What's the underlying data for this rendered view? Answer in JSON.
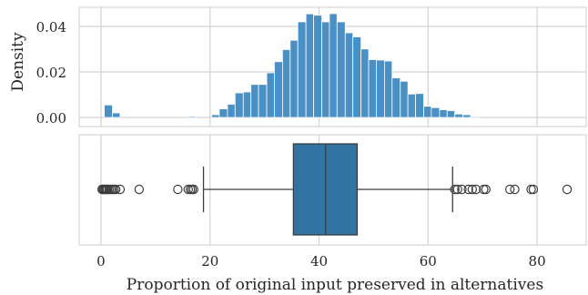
{
  "chart_data": [
    {
      "type": "histogram",
      "ylabel": "Density",
      "xlim": [
        -4,
        89
      ],
      "ylim": [
        0,
        0.048
      ],
      "yticks": [
        0.0,
        0.02,
        0.04
      ],
      "ytick_labels": [
        "0.00",
        "0.02",
        "0.04"
      ],
      "xticks": [
        0,
        20,
        40,
        60,
        80
      ],
      "grid": true,
      "bar_color": "#4a90c4",
      "bins": [
        {
          "x0": 0.6,
          "x1": 2.1,
          "density": 0.0055
        },
        {
          "x0": 2.1,
          "x1": 3.5,
          "density": 0.002
        },
        {
          "x0": 16.0,
          "x1": 17.4,
          "density": 0.0005
        },
        {
          "x0": 20.3,
          "x1": 21.7,
          "density": 0.0012
        },
        {
          "x0": 21.7,
          "x1": 23.2,
          "density": 0.0038
        },
        {
          "x0": 23.2,
          "x1": 24.6,
          "density": 0.0058
        },
        {
          "x0": 24.6,
          "x1": 26.1,
          "density": 0.0108
        },
        {
          "x0": 26.1,
          "x1": 27.5,
          "density": 0.0112
        },
        {
          "x0": 27.5,
          "x1": 28.9,
          "density": 0.0145
        },
        {
          "x0": 28.9,
          "x1": 30.4,
          "density": 0.0145
        },
        {
          "x0": 30.4,
          "x1": 31.8,
          "density": 0.0196
        },
        {
          "x0": 31.8,
          "x1": 33.3,
          "density": 0.0245
        },
        {
          "x0": 33.3,
          "x1": 34.7,
          "density": 0.0298
        },
        {
          "x0": 34.7,
          "x1": 36.1,
          "density": 0.0339
        },
        {
          "x0": 36.1,
          "x1": 37.6,
          "density": 0.042
        },
        {
          "x0": 37.6,
          "x1": 39.0,
          "density": 0.0455
        },
        {
          "x0": 39.0,
          "x1": 40.5,
          "density": 0.0449
        },
        {
          "x0": 40.5,
          "x1": 41.9,
          "density": 0.042
        },
        {
          "x0": 41.9,
          "x1": 43.3,
          "density": 0.0456
        },
        {
          "x0": 43.3,
          "x1": 44.8,
          "density": 0.042
        },
        {
          "x0": 44.8,
          "x1": 46.2,
          "density": 0.0372
        },
        {
          "x0": 46.2,
          "x1": 47.7,
          "density": 0.0354
        },
        {
          "x0": 47.7,
          "x1": 49.1,
          "density": 0.0301
        },
        {
          "x0": 49.1,
          "x1": 50.5,
          "density": 0.0254
        },
        {
          "x0": 50.5,
          "x1": 52.0,
          "density": 0.0252
        },
        {
          "x0": 52.0,
          "x1": 53.4,
          "density": 0.0248
        },
        {
          "x0": 53.4,
          "x1": 54.9,
          "density": 0.0174
        },
        {
          "x0": 54.9,
          "x1": 56.3,
          "density": 0.0159
        },
        {
          "x0": 56.3,
          "x1": 57.7,
          "density": 0.0103
        },
        {
          "x0": 57.7,
          "x1": 59.2,
          "density": 0.0105
        },
        {
          "x0": 59.2,
          "x1": 60.6,
          "density": 0.0049
        },
        {
          "x0": 60.6,
          "x1": 62.1,
          "density": 0.0043
        },
        {
          "x0": 62.1,
          "x1": 63.5,
          "density": 0.0034
        },
        {
          "x0": 63.5,
          "x1": 64.9,
          "density": 0.003
        },
        {
          "x0": 64.9,
          "x1": 66.4,
          "density": 0.0015
        },
        {
          "x0": 66.4,
          "x1": 67.8,
          "density": 0.0012
        },
        {
          "x0": 67.8,
          "x1": 69.3,
          "density": 0.0004
        }
      ]
    },
    {
      "type": "boxplot",
      "xlabel": "Proportion of original input preserved in alternatives",
      "xlim": [
        -4,
        89
      ],
      "xticks": [
        0,
        20,
        40,
        60,
        80
      ],
      "xtick_labels": [
        "0",
        "20",
        "40",
        "60",
        "80"
      ],
      "grid": true,
      "box_color": "#3274a1",
      "q1": 35.3,
      "median": 41.2,
      "q3": 47.0,
      "whisker_low": 18.8,
      "whisker_high": 64.5,
      "outliers": [
        0.2,
        0.4,
        0.6,
        0.8,
        1.0,
        1.2,
        1.5,
        1.8,
        2.1,
        2.4,
        2.7,
        3.5,
        7.0,
        14.1,
        16.0,
        16.4,
        16.7,
        17.0,
        64.9,
        65.4,
        66.2,
        67.4,
        68.1,
        68.8,
        70.2,
        70.6,
        75.0,
        75.9,
        78.9,
        79.3,
        85.5
      ]
    }
  ]
}
